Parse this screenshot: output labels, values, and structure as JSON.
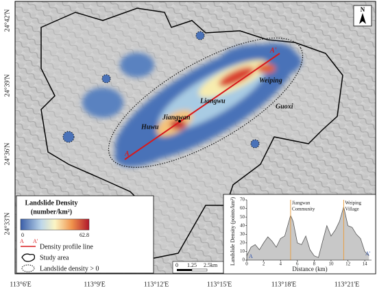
{
  "map": {
    "lat_labels": [
      "24°42'N",
      "24°39'N",
      "24°36'N",
      "24°33'N"
    ],
    "lon_labels": [
      "113°6'E",
      "113°9'E",
      "113°12'E",
      "113°15'E",
      "113°18'E",
      "113°21'E"
    ],
    "places": [
      "Weiping",
      "Liangwu",
      "Guoxi",
      "Jiangwan",
      "Huwu"
    ],
    "profile_ends": [
      "A",
      "A'"
    ],
    "legend": {
      "title_lines": [
        "Landslide Density",
        "(number/km²)"
      ],
      "colorbar_min": "0",
      "colorbar_max": "62.8",
      "items": [
        "Density profile line",
        "Study area",
        "Landslide density > 0"
      ],
      "profile_symbol_labels": [
        "A",
        "A'"
      ]
    },
    "scale_bar": {
      "labels": [
        "0",
        "1.25",
        "2.5"
      ],
      "unit": "km"
    }
  },
  "chart_data": {
    "type": "area",
    "y_label": "Landslide Density (points/km²)",
    "x_label": "Distance (km)",
    "x": [
      0,
      0.5,
      1,
      1.5,
      2,
      2.5,
      3,
      3.5,
      4,
      4.5,
      5,
      5.2,
      5.5,
      6,
      6.5,
      7,
      7.5,
      8,
      8.5,
      9,
      9.5,
      10,
      10.5,
      11,
      11.5,
      12,
      12.5,
      13,
      13.5,
      14,
      14.5
    ],
    "series": [
      {
        "color": "#555555",
        "values": [
          5,
          15,
          18,
          12,
          20,
          27,
          22,
          15,
          25,
          28,
          45,
          52,
          45,
          20,
          18,
          28,
          12,
          5,
          3,
          22,
          40,
          28,
          35,
          45,
          62,
          40,
          38,
          30,
          25,
          10,
          5
        ]
      }
    ],
    "xlim": [
      0,
      14.8
    ],
    "ylim": [
      0,
      70
    ],
    "xticks": [
      0,
      2,
      4,
      6,
      8,
      10,
      12,
      14
    ],
    "yticks": [
      0,
      10,
      20,
      30,
      40,
      50,
      60,
      70
    ],
    "annotations": [
      {
        "x": 5.2,
        "lines": [
          "Jiangwan",
          "Community"
        ]
      },
      {
        "x": 11.5,
        "lines": [
          "Weiping",
          "Village"
        ]
      }
    ],
    "end_labels": [
      "A",
      "A'"
    ]
  }
}
